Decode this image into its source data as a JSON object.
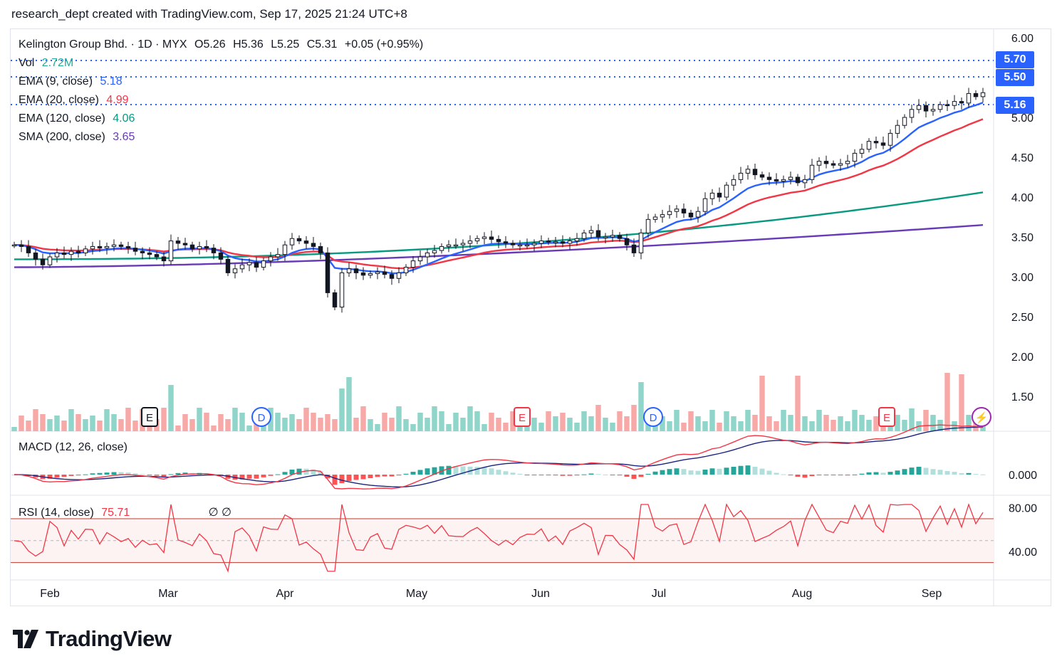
{
  "header": {
    "text": "research_dept created with TradingView.com, Sep 17, 2025 21:24 UTC+8"
  },
  "symbol_line": {
    "name": "Kelington Group Bhd. · 1D · MYX",
    "open": "O5.26",
    "high": "H5.36",
    "low": "L5.25",
    "close": "C5.31",
    "change": "+0.05 (+0.95%)"
  },
  "indicators": [
    {
      "label": "Vol",
      "value": "2.72M",
      "color": "#22ab94"
    },
    {
      "label": "EMA (9, close)",
      "value": "5.18",
      "color": "#2962ff"
    },
    {
      "label": "EMA (20, close)",
      "value": "4.99",
      "color": "#f23645"
    },
    {
      "label": "EMA (120, close)",
      "value": "4.06",
      "color": "#089981"
    },
    {
      "label": "SMA (200, close)",
      "value": "3.65",
      "color": "#673ab7"
    }
  ],
  "macd": {
    "label": "MACD (12, 26, close)"
  },
  "rsi": {
    "label": "RSI (14, close)",
    "value": "75.71",
    "extra": "∅  ∅"
  },
  "price_tags": [
    {
      "value": "5.70"
    },
    {
      "value": "5.50"
    },
    {
      "value": "5.16"
    }
  ],
  "event_markers": [
    {
      "letter": "E",
      "type": "earnings",
      "color": "#131722"
    },
    {
      "letter": "D",
      "type": "dividend",
      "color": "#2962ff"
    },
    {
      "letter": "E",
      "type": "earnings",
      "color": "#f23645"
    },
    {
      "letter": "D",
      "type": "dividend",
      "color": "#2962ff"
    },
    {
      "letter": "E",
      "type": "earnings",
      "color": "#f23645"
    },
    {
      "letter": "⚡",
      "type": "lightning",
      "color": "#9c27b0"
    }
  ],
  "logo": {
    "text": "TradingView"
  },
  "chart_data": {
    "type": "candlestick",
    "x_axis": {
      "labels": [
        "Feb",
        "Mar",
        "Apr",
        "May",
        "Jun",
        "Jul",
        "Aug",
        "Sep"
      ]
    },
    "y_axis": {
      "ticks": [
        "6.00",
        "5.50",
        "5.00",
        "4.50",
        "4.00",
        "3.50",
        "3.00",
        "2.50",
        "2.00",
        "1.50"
      ],
      "range": [
        1.1,
        6.0
      ]
    },
    "macd_axis": {
      "ticks": [
        "0.000"
      ]
    },
    "rsi_axis": {
      "ticks": [
        "80.00",
        "40.00"
      ],
      "bands": [
        70,
        30
      ]
    },
    "close_series": [
      3.4,
      3.38,
      3.3,
      3.22,
      3.15,
      3.25,
      3.3,
      3.28,
      3.32,
      3.3,
      3.35,
      3.38,
      3.36,
      3.38,
      3.4,
      3.38,
      3.36,
      3.32,
      3.3,
      3.28,
      3.25,
      3.2,
      3.45,
      3.42,
      3.4,
      3.35,
      3.38,
      3.36,
      3.3,
      3.22,
      3.05,
      3.1,
      3.15,
      3.18,
      3.12,
      3.2,
      3.25,
      3.28,
      3.4,
      3.48,
      3.45,
      3.42,
      3.38,
      3.3,
      2.8,
      2.62,
      3.05,
      3.1,
      3.05,
      3.02,
      3.04,
      3.06,
      3.03,
      2.98,
      3.05,
      3.12,
      3.2,
      3.25,
      3.3,
      3.33,
      3.38,
      3.4,
      3.4,
      3.42,
      3.45,
      3.48,
      3.5,
      3.47,
      3.44,
      3.42,
      3.4,
      3.4,
      3.4,
      3.42,
      3.45,
      3.44,
      3.44,
      3.42,
      3.45,
      3.48,
      3.55,
      3.58,
      3.5,
      3.5,
      3.52,
      3.48,
      3.4,
      3.3,
      3.55,
      3.72,
      3.75,
      3.78,
      3.82,
      3.85,
      3.8,
      3.75,
      3.82,
      3.98,
      4.05,
      4.0,
      4.15,
      4.22,
      4.3,
      4.35,
      4.28,
      4.25,
      4.22,
      4.2,
      4.22,
      4.25,
      4.18,
      4.22,
      4.4,
      4.45,
      4.42,
      4.4,
      4.42,
      4.45,
      4.55,
      4.6,
      4.7,
      4.68,
      4.65,
      4.8,
      4.9,
      5.0,
      5.1,
      5.15,
      5.08,
      5.1,
      5.16,
      5.15,
      5.2,
      5.18,
      5.3,
      5.26,
      5.31
    ],
    "overlays": [
      {
        "name": "EMA (9, close)",
        "color": "#2962ff",
        "last": 5.18
      },
      {
        "name": "EMA (20, close)",
        "color": "#f23645",
        "last": 4.99
      },
      {
        "name": "EMA (120, close)",
        "color": "#089981",
        "last": 4.06
      },
      {
        "name": "SMA (200, close)",
        "color": "#673ab7",
        "last": 3.65
      }
    ],
    "horizontal_levels": [
      5.7,
      5.5,
      5.16
    ],
    "rsi_last": 75.71
  }
}
